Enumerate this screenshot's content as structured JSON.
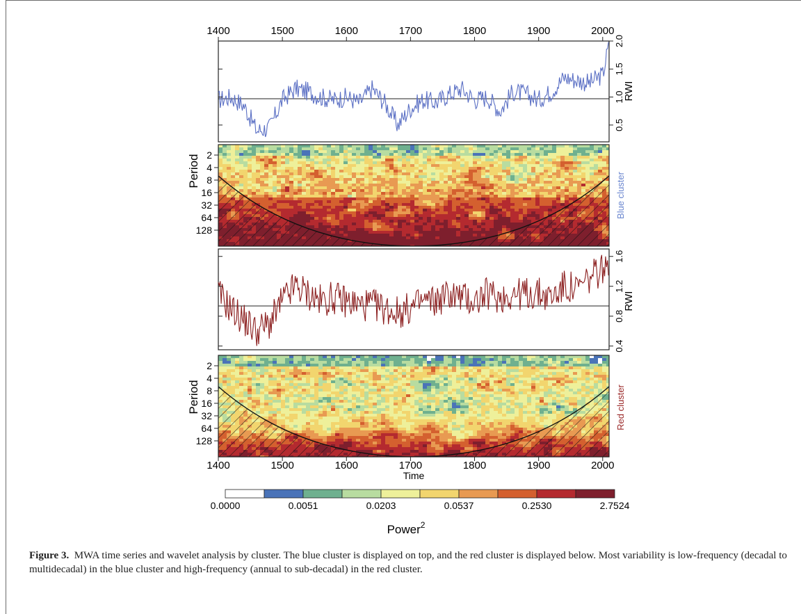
{
  "figure": {
    "top_axis_ticks": [
      "1400",
      "1500",
      "1600",
      "1700",
      "1800",
      "1900",
      "2000"
    ],
    "bottom_axis_ticks": [
      "1400",
      "1500",
      "1600",
      "1700",
      "1800",
      "1900",
      "2000"
    ],
    "xlabel": "Time",
    "period_label": "Period",
    "period_ticks": [
      "2",
      "4",
      "8",
      "16",
      "32",
      "64",
      "128"
    ],
    "rwi_label": "RWI",
    "blue_rwi_ticks": [
      "0.5",
      "1.0",
      "1.5",
      "2.0"
    ],
    "red_rwi_ticks": [
      "0.4",
      "0.8",
      "1.2",
      "1.6"
    ],
    "blue_cluster_label": "Blue cluster",
    "red_cluster_label": "Red cluster",
    "colorbar": {
      "ticks": [
        "0.0000",
        "0.0051",
        "0.0203",
        "0.0537",
        "0.2530",
        "2.7524"
      ],
      "label": "Power",
      "label_superscript": "2",
      "colors": [
        "#ffffff",
        "#4a73b8",
        "#6fb08f",
        "#b8dca0",
        "#eef09a",
        "#f2d56e",
        "#e89a52",
        "#d4602f",
        "#b42a2f",
        "#7e1f2d"
      ]
    },
    "colors": {
      "blue_series": "#5a6fc4",
      "red_series": "#8b1e1e",
      "blue_label": "#6a86cf",
      "red_label": "#9b2a2a"
    }
  },
  "chart_data": [
    {
      "type": "line",
      "name": "Blue cluster RWI",
      "x_range": [
        1400,
        2010
      ],
      "ylabel": "RWI",
      "ylim": [
        0.2,
        2.0
      ],
      "reference_line": 1.0,
      "x": [
        1400,
        1420,
        1440,
        1460,
        1480,
        1500,
        1520,
        1540,
        1560,
        1580,
        1600,
        1620,
        1640,
        1660,
        1680,
        1700,
        1720,
        1740,
        1760,
        1780,
        1800,
        1820,
        1840,
        1860,
        1880,
        1900,
        1920,
        1940,
        1960,
        1980,
        2000,
        2010
      ],
      "y": [
        0.95,
        1.0,
        0.85,
        0.4,
        0.45,
        0.95,
        1.15,
        1.1,
        1.0,
        0.95,
        1.0,
        0.9,
        1.15,
        0.9,
        0.5,
        0.8,
        0.95,
        0.9,
        1.05,
        1.15,
        0.95,
        1.0,
        0.75,
        1.1,
        1.05,
        0.95,
        1.1,
        1.35,
        1.3,
        1.25,
        1.4,
        1.95
      ]
    },
    {
      "type": "heatmap",
      "name": "Blue cluster wavelet power",
      "x_range": [
        1400,
        2010
      ],
      "ylabel": "Period",
      "y_ticks": [
        2,
        4,
        8,
        16,
        32,
        64,
        128
      ],
      "scale": "log2 period",
      "dominant_band": "decadal to multidecadal (32-128)"
    },
    {
      "type": "line",
      "name": "Red cluster RWI",
      "x_range": [
        1400,
        2010
      ],
      "ylabel": "RWI",
      "ylim": [
        0.35,
        1.7
      ],
      "reference_line": 1.0,
      "x": [
        1400,
        1420,
        1440,
        1460,
        1480,
        1500,
        1520,
        1540,
        1560,
        1580,
        1600,
        1620,
        1640,
        1660,
        1680,
        1700,
        1720,
        1740,
        1760,
        1780,
        1800,
        1820,
        1840,
        1860,
        1880,
        1900,
        1920,
        1940,
        1960,
        1980,
        2000,
        2010
      ],
      "y": [
        1.1,
        0.9,
        0.75,
        0.6,
        0.7,
        1.0,
        1.2,
        1.1,
        1.0,
        1.05,
        1.0,
        0.95,
        0.95,
        0.9,
        0.85,
        0.9,
        1.0,
        1.0,
        1.1,
        1.05,
        1.0,
        1.1,
        1.05,
        1.1,
        1.1,
        1.1,
        1.05,
        1.2,
        1.15,
        1.3,
        1.45,
        1.35
      ]
    },
    {
      "type": "heatmap",
      "name": "Red cluster wavelet power",
      "x_range": [
        1400,
        2010
      ],
      "ylabel": "Period",
      "y_ticks": [
        2,
        4,
        8,
        16,
        32,
        64,
        128
      ],
      "scale": "log2 period",
      "dominant_band": "annual to sub-decadal (2-8)"
    }
  ],
  "caption": {
    "label": "Figure 3.",
    "text": "MWA time series and wavelet analysis by cluster. The blue cluster is displayed on top, and the red cluster is displayed below. Most variability is low-frequency (decadal to multidecadal) in the blue cluster and high-frequency (annual to sub-decadal) in the red cluster."
  }
}
